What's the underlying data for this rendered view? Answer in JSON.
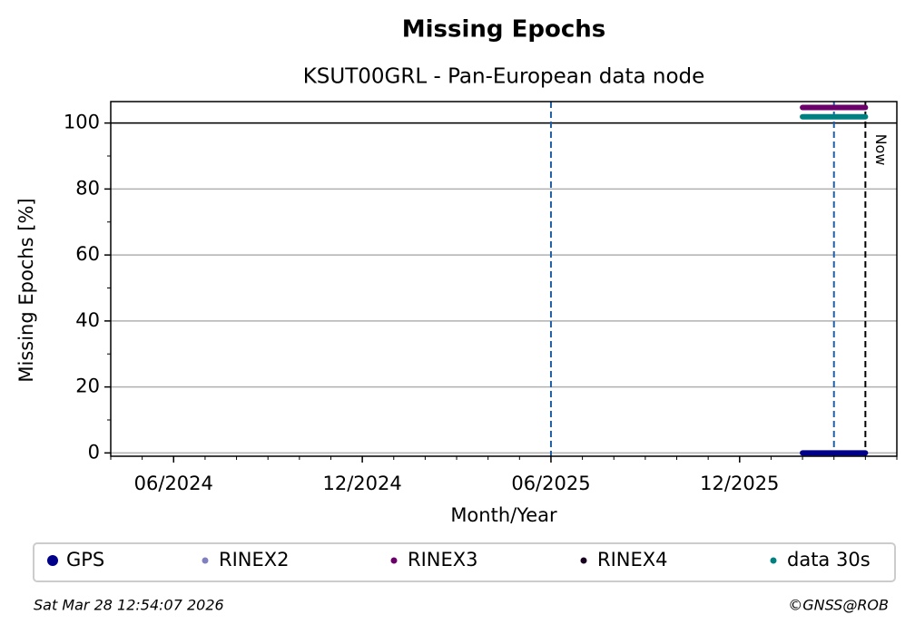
{
  "chart_data": {
    "type": "timeline",
    "title": "Missing Epochs",
    "subtitle": "KSUT00GRL - Pan-European data node",
    "x_label": "Month/Year",
    "y_label": "Missing Epochs [%]",
    "xlim": [
      "2024-04",
      "2026-05"
    ],
    "xticks": [
      {
        "value": "2024-06",
        "label": "06/2024"
      },
      {
        "value": "2024-12",
        "label": "12/2024"
      },
      {
        "value": "2025-06",
        "label": "06/2025"
      },
      {
        "value": "2025-12",
        "label": "12/2025"
      }
    ],
    "ylim": [
      -1,
      106.5
    ],
    "yticks": [
      0,
      20,
      40,
      60,
      80,
      100
    ],
    "grid": true,
    "hline": 100,
    "vlines": [
      {
        "x": "2025-06",
        "color": "#1f5fa8"
      },
      {
        "x": "2026-03",
        "color": "#1f5fa8"
      }
    ],
    "now": {
      "x": "2026-04",
      "label": "Now",
      "color": "#000000"
    },
    "series": [
      {
        "name": "GPS",
        "color": "#00008b",
        "x": [
          "2026-02",
          "2026-03",
          "2026-04"
        ],
        "values": [
          0,
          0,
          0
        ]
      },
      {
        "name": "RINEX2",
        "color": "#8080c0",
        "x": [],
        "values": []
      },
      {
        "name": "RINEX3",
        "color": "#6b006b",
        "x": [
          "2026-02",
          "2026-03",
          "2026-04"
        ],
        "values": [
          104.7,
          104.7,
          104.7
        ]
      },
      {
        "name": "RINEX4",
        "color": "#1a0020",
        "x": [],
        "values": []
      },
      {
        "name": "data 30s",
        "color": "#008080",
        "x": [
          "2026-02",
          "2026-03",
          "2026-04"
        ],
        "values": [
          101.9,
          101.9,
          101.9
        ]
      }
    ],
    "timestamp": "Sat Mar 28 12:54:07 2026",
    "credit": "©GNSS@ROB"
  }
}
